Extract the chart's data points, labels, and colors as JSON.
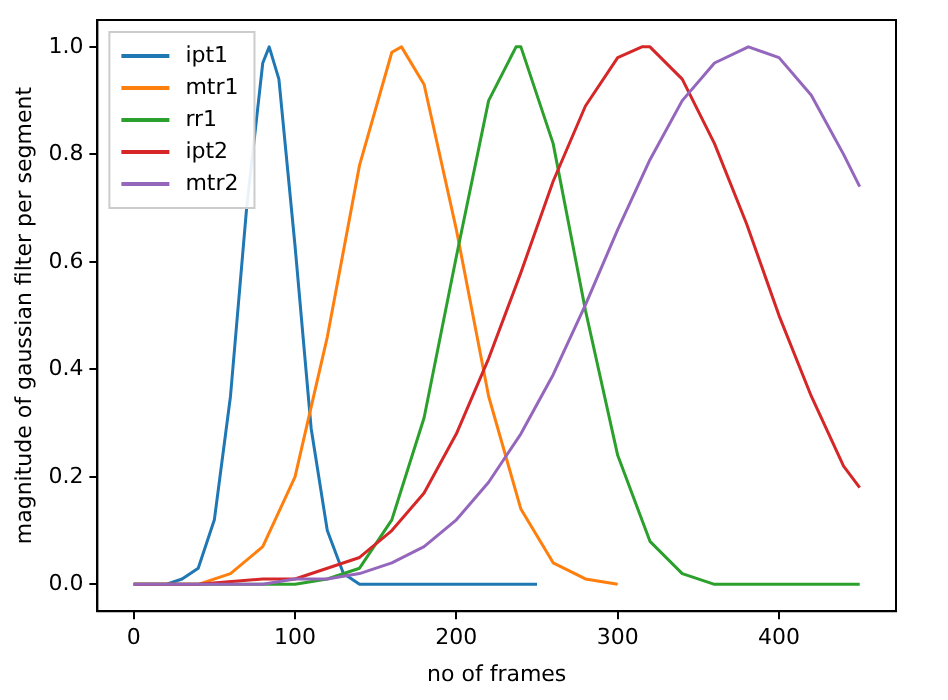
{
  "chart_data": {
    "type": "line",
    "xlabel": "no of frames",
    "ylabel": "magnitude of gaussian filter per segment",
    "xlim": [
      -22.5,
      472.5
    ],
    "ylim": [
      -0.05,
      1.05
    ],
    "xticks": [
      0,
      100,
      200,
      300,
      400
    ],
    "yticks": [
      {
        "value": 0,
        "label": "0.0"
      },
      {
        "value": 0.2,
        "label": "0.2"
      },
      {
        "value": 0.4,
        "label": "0.4"
      },
      {
        "value": 0.6,
        "label": "0.6"
      },
      {
        "value": 0.8,
        "label": "0.8"
      },
      {
        "value": 1,
        "label": "1.0"
      }
    ],
    "grid": false,
    "legend": "top left",
    "marker": "none",
    "line_style": "solid",
    "series": [
      {
        "name": "ipt1",
        "color": "#1f77b4",
        "x": [
          0,
          10,
          20,
          30,
          40,
          50,
          60,
          70,
          80,
          84,
          90,
          100,
          110,
          120,
          130,
          140,
          150,
          200,
          250
        ],
        "values": [
          0,
          0,
          0,
          0.01,
          0.03,
          0.12,
          0.35,
          0.7,
          0.97,
          1,
          0.94,
          0.63,
          0.29,
          0.1,
          0.02,
          0,
          0,
          0,
          0
        ]
      },
      {
        "name": "mtr1",
        "color": "#ff7f0e",
        "x": [
          0,
          20,
          40,
          60,
          80,
          100,
          120,
          140,
          160,
          166,
          180,
          200,
          220,
          240,
          260,
          280,
          300
        ],
        "values": [
          0,
          0,
          0,
          0.02,
          0.07,
          0.2,
          0.46,
          0.78,
          0.99,
          1,
          0.93,
          0.66,
          0.35,
          0.14,
          0.04,
          0.01,
          0
        ]
      },
      {
        "name": "rr1",
        "color": "#2ca02c",
        "x": [
          0,
          50,
          100,
          120,
          140,
          160,
          180,
          200,
          220,
          237,
          240,
          260,
          280,
          300,
          320,
          340,
          360,
          380,
          400,
          450
        ],
        "values": [
          0,
          0,
          0,
          0.01,
          0.03,
          0.12,
          0.31,
          0.61,
          0.9,
          1,
          1,
          0.82,
          0.51,
          0.24,
          0.08,
          0.02,
          0,
          0,
          0,
          0
        ]
      },
      {
        "name": "ipt2",
        "color": "#d62728",
        "x": [
          0,
          40,
          80,
          100,
          120,
          140,
          160,
          180,
          200,
          220,
          240,
          260,
          280,
          300,
          315,
          320,
          340,
          360,
          380,
          400,
          420,
          440,
          450
        ],
        "values": [
          0,
          0,
          0.01,
          0.01,
          0.03,
          0.05,
          0.1,
          0.17,
          0.28,
          0.42,
          0.58,
          0.75,
          0.89,
          0.98,
          1,
          1,
          0.94,
          0.82,
          0.67,
          0.5,
          0.35,
          0.22,
          0.18
        ]
      },
      {
        "name": "mtr2",
        "color": "#9467bd",
        "x": [
          0,
          40,
          80,
          100,
          120,
          140,
          160,
          180,
          200,
          220,
          240,
          260,
          280,
          300,
          320,
          340,
          360,
          381,
          400,
          420,
          440,
          450
        ],
        "values": [
          0,
          0,
          0,
          0.01,
          0.01,
          0.02,
          0.04,
          0.07,
          0.12,
          0.19,
          0.28,
          0.39,
          0.52,
          0.66,
          0.79,
          0.9,
          0.97,
          1,
          0.98,
          0.91,
          0.8,
          0.74
        ]
      }
    ]
  }
}
